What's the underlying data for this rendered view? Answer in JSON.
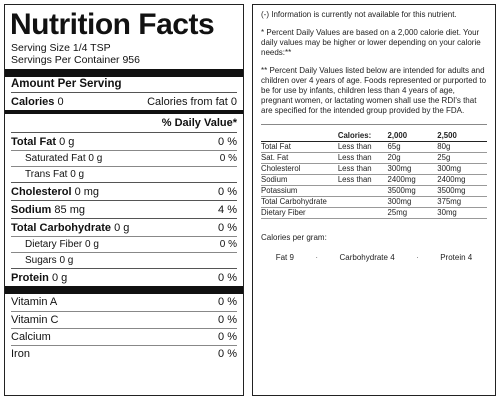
{
  "label": {
    "title": "Nutrition Facts",
    "serving_size": "Serving Size 1/4 TSP",
    "servings_per_container": "Servings Per Container 956",
    "amount_per_serving": "Amount Per Serving",
    "calories": {
      "label": "Calories",
      "value": "0",
      "from_fat_label": "Calories from fat",
      "from_fat_value": "0"
    },
    "daily_value_header": "% Daily Value*",
    "nutrients": [
      {
        "name": "Total Fat",
        "amount": "0 g",
        "dv": "0 %",
        "bold": true
      },
      {
        "name": "Saturated Fat",
        "amount": "0 g",
        "dv": "0 %",
        "bold": false
      },
      {
        "name": "Trans Fat",
        "amount": "0 g",
        "dv": "",
        "bold": false
      },
      {
        "name": "Cholesterol",
        "amount": "0 mg",
        "dv": "0 %",
        "bold": true
      },
      {
        "name": "Sodium",
        "amount": "85 mg",
        "dv": "4 %",
        "bold": true
      },
      {
        "name": "Total Carbohydrate",
        "amount": "0 g",
        "dv": "0 %",
        "bold": true
      },
      {
        "name": "Dietary Fiber",
        "amount": "0 g",
        "dv": "0 %",
        "bold": false
      },
      {
        "name": "Sugars",
        "amount": "0 g",
        "dv": "",
        "bold": false
      },
      {
        "name": "Protein",
        "amount": "0 g",
        "dv": "0 %",
        "bold": true
      }
    ],
    "vitamins": [
      {
        "name": "Vitamin A",
        "dv": "0 %"
      },
      {
        "name": "Vitamin C",
        "dv": "0 %"
      },
      {
        "name": "Calcium",
        "dv": "0 %"
      },
      {
        "name": "Iron",
        "dv": "0 %"
      }
    ]
  },
  "footnote": {
    "info_unavailable": "(-) Information is currently not available for this nutrient.",
    "percent_note": "* Percent Daily Values are based on a 2,000 calorie diet. Your daily values may be higher or lower depending on your calorie needs:**",
    "rdi_note": "** Percent Daily Values listed below are intended for adults and children over 4 years of age. Foods represented or purported to be for use by infants, children less than 4 years of age, pregnant women, or lactating women shall use the RDI's that are specified for the intended group provided by the FDA.",
    "table": {
      "header": {
        "label": "Calories:",
        "c1": "2,000",
        "c2": "2,500"
      },
      "rows": [
        {
          "name": "Total Fat",
          "qual": "Less than",
          "c1": "65g",
          "c2": "80g"
        },
        {
          "name": "Sat. Fat",
          "qual": "Less than",
          "c1": "20g",
          "c2": "25g"
        },
        {
          "name": "Cholesterol",
          "qual": "Less than",
          "c1": "300mg",
          "c2": "300mg"
        },
        {
          "name": "Sodium",
          "qual": "Less than",
          "c1": "2400mg",
          "c2": "2400mg"
        },
        {
          "name": "Potassium",
          "qual": "",
          "c1": "3500mg",
          "c2": "3500mg"
        },
        {
          "name": "Total Carbohydrate",
          "qual": "",
          "c1": "300mg",
          "c2": "375mg"
        },
        {
          "name": "Dietary Fiber",
          "qual": "",
          "c1": "25mg",
          "c2": "30mg"
        }
      ]
    },
    "calories_per_gram": "Calories per gram:",
    "per_gram": [
      {
        "text": "Fat 9"
      },
      {
        "text": "Carbohydrate 4"
      },
      {
        "text": "Protein 4"
      }
    ]
  }
}
